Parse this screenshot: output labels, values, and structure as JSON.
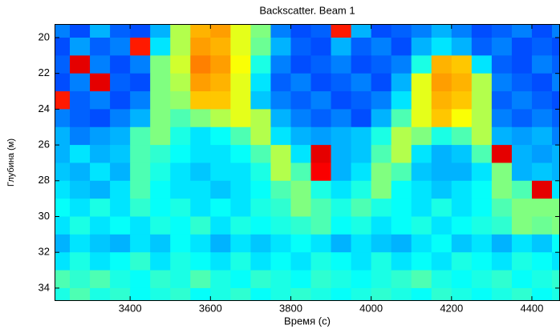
{
  "chart_data": {
    "type": "heatmap",
    "title": "Backscatter. Beam 1",
    "x_label": "Время (с)",
    "y_label": "Глубина (м)",
    "colormap": "jet",
    "zlim": [
      0,
      1
    ],
    "y_reversed": true,
    "xlim": [
      3212,
      4470
    ],
    "ylim": [
      19.24,
      34.72
    ],
    "xticks": [
      3400,
      3600,
      3800,
      4000,
      4200,
      4400
    ],
    "yticks": [
      20,
      22,
      24,
      26,
      28,
      30,
      32,
      34
    ],
    "xbins": [
      3200,
      3250,
      3300,
      3350,
      3400,
      3450,
      3500,
      3550,
      3600,
      3650,
      3700,
      3750,
      3800,
      3850,
      3900,
      3950,
      4000,
      4050,
      4100,
      4150,
      4200,
      4250,
      4300,
      4350,
      4400,
      4450,
      4500
    ],
    "ybins": [
      19,
      20,
      21,
      22,
      23,
      24,
      25,
      26,
      27,
      28,
      29,
      30,
      31,
      32,
      33,
      34,
      35
    ],
    "z": [
      [
        0.25,
        0.2,
        0.3,
        0.22,
        0.2,
        0.3,
        0.55,
        0.7,
        0.72,
        0.6,
        0.5,
        0.25,
        0.2,
        0.22,
        0.85,
        0.3,
        0.2,
        0.22,
        0.25,
        0.3,
        0.25,
        0.2,
        0.22,
        0.25,
        0.2,
        0.25
      ],
      [
        0.2,
        0.28,
        0.22,
        0.25,
        0.85,
        0.35,
        0.55,
        0.72,
        0.7,
        0.6,
        0.48,
        0.3,
        0.22,
        0.2,
        0.3,
        0.22,
        0.25,
        0.2,
        0.3,
        0.35,
        0.3,
        0.22,
        0.25,
        0.2,
        0.22,
        0.2
      ],
      [
        0.22,
        0.9,
        0.25,
        0.2,
        0.25,
        0.5,
        0.58,
        0.75,
        0.72,
        0.62,
        0.4,
        0.25,
        0.2,
        0.22,
        0.25,
        0.2,
        0.22,
        0.25,
        0.4,
        0.7,
        0.68,
        0.35,
        0.22,
        0.2,
        0.25,
        0.22
      ],
      [
        0.2,
        0.25,
        0.9,
        0.22,
        0.2,
        0.5,
        0.55,
        0.72,
        0.7,
        0.6,
        0.35,
        0.22,
        0.25,
        0.2,
        0.22,
        0.25,
        0.2,
        0.3,
        0.6,
        0.72,
        0.7,
        0.55,
        0.25,
        0.22,
        0.2,
        0.25
      ],
      [
        0.85,
        0.22,
        0.25,
        0.2,
        0.25,
        0.5,
        0.52,
        0.68,
        0.68,
        0.6,
        0.32,
        0.25,
        0.22,
        0.25,
        0.2,
        0.22,
        0.25,
        0.35,
        0.6,
        0.7,
        0.68,
        0.55,
        0.22,
        0.25,
        0.22,
        0.2
      ],
      [
        0.25,
        0.22,
        0.2,
        0.25,
        0.3,
        0.5,
        0.45,
        0.5,
        0.55,
        0.6,
        0.55,
        0.3,
        0.25,
        0.22,
        0.25,
        0.2,
        0.3,
        0.45,
        0.6,
        0.68,
        0.62,
        0.55,
        0.25,
        0.22,
        0.25,
        0.22
      ],
      [
        0.3,
        0.25,
        0.28,
        0.3,
        0.45,
        0.5,
        0.4,
        0.35,
        0.38,
        0.45,
        0.55,
        0.35,
        0.3,
        0.28,
        0.3,
        0.32,
        0.4,
        0.55,
        0.5,
        0.4,
        0.45,
        0.55,
        0.3,
        0.28,
        0.3,
        0.25
      ],
      [
        0.3,
        0.35,
        0.3,
        0.32,
        0.45,
        0.42,
        0.38,
        0.35,
        0.35,
        0.38,
        0.45,
        0.55,
        0.35,
        0.9,
        0.3,
        0.32,
        0.45,
        0.55,
        0.35,
        0.3,
        0.32,
        0.45,
        0.9,
        0.3,
        0.28,
        0.3
      ],
      [
        0.32,
        0.3,
        0.35,
        0.3,
        0.45,
        0.4,
        0.35,
        0.32,
        0.35,
        0.35,
        0.4,
        0.55,
        0.45,
        0.88,
        0.3,
        0.35,
        0.5,
        0.45,
        0.32,
        0.3,
        0.3,
        0.35,
        0.5,
        0.3,
        0.32,
        0.3
      ],
      [
        0.35,
        0.32,
        0.3,
        0.35,
        0.45,
        0.38,
        0.35,
        0.35,
        0.32,
        0.35,
        0.38,
        0.45,
        0.5,
        0.4,
        0.35,
        0.4,
        0.5,
        0.38,
        0.35,
        0.32,
        0.35,
        0.38,
        0.5,
        0.45,
        0.9,
        0.35
      ],
      [
        0.38,
        0.35,
        0.4,
        0.35,
        0.42,
        0.38,
        0.4,
        0.35,
        0.38,
        0.35,
        0.4,
        0.42,
        0.5,
        0.45,
        0.4,
        0.45,
        0.4,
        0.38,
        0.35,
        0.4,
        0.35,
        0.38,
        0.45,
        0.5,
        0.5,
        0.5
      ],
      [
        0.35,
        0.4,
        0.35,
        0.38,
        0.35,
        0.4,
        0.38,
        0.42,
        0.35,
        0.4,
        0.38,
        0.4,
        0.42,
        0.45,
        0.38,
        0.4,
        0.35,
        0.38,
        0.4,
        0.35,
        0.38,
        0.4,
        0.42,
        0.5,
        0.48,
        0.5
      ],
      [
        0.3,
        0.35,
        0.32,
        0.3,
        0.35,
        0.32,
        0.38,
        0.35,
        0.3,
        0.35,
        0.32,
        0.35,
        0.38,
        0.35,
        0.3,
        0.35,
        0.32,
        0.3,
        0.35,
        0.38,
        0.32,
        0.35,
        0.3,
        0.35,
        0.32,
        0.38
      ],
      [
        0.35,
        0.4,
        0.35,
        0.38,
        0.42,
        0.35,
        0.4,
        0.38,
        0.35,
        0.4,
        0.35,
        0.38,
        0.35,
        0.4,
        0.38,
        0.35,
        0.4,
        0.35,
        0.38,
        0.35,
        0.4,
        0.38,
        0.35,
        0.4,
        0.38,
        0.35
      ],
      [
        0.45,
        0.42,
        0.45,
        0.4,
        0.38,
        0.42,
        0.4,
        0.45,
        0.4,
        0.38,
        0.42,
        0.4,
        0.38,
        0.42,
        0.4,
        0.38,
        0.4,
        0.42,
        0.45,
        0.4,
        0.38,
        0.4,
        0.42,
        0.38,
        0.4,
        0.42
      ],
      [
        0.4,
        0.45,
        0.4,
        0.42,
        0.38,
        0.4,
        0.42,
        0.38,
        0.4,
        0.42,
        0.38,
        0.4,
        0.42,
        0.4,
        0.38,
        0.4,
        0.42,
        0.4,
        0.38,
        0.42,
        0.4,
        0.38,
        0.4,
        0.42,
        0.38,
        0.4
      ]
    ]
  }
}
